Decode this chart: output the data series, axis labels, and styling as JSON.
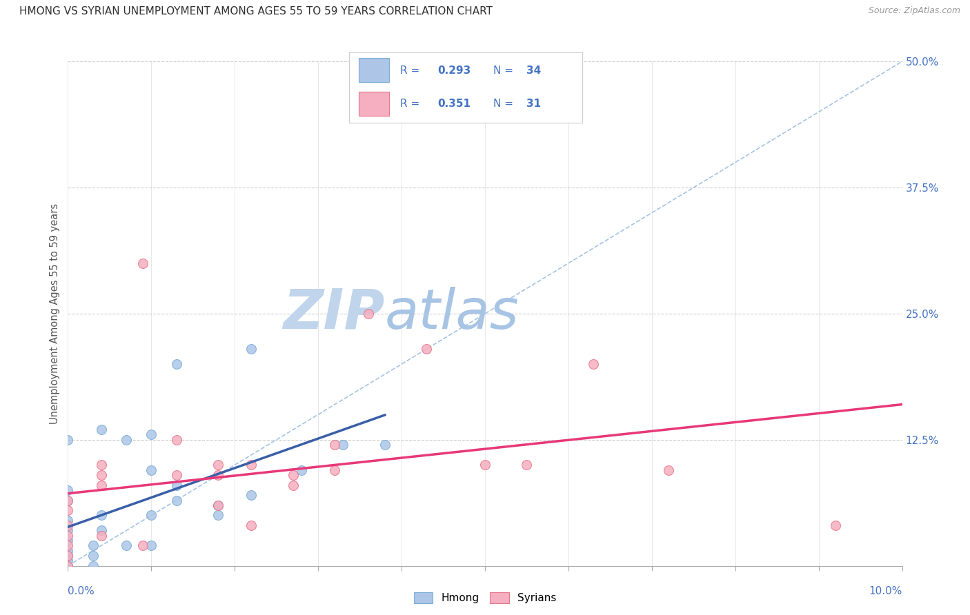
{
  "title": "HMONG VS SYRIAN UNEMPLOYMENT AMONG AGES 55 TO 59 YEARS CORRELATION CHART",
  "source": "Source: ZipAtlas.com",
  "ylabel": "Unemployment Among Ages 55 to 59 years",
  "xlim": [
    0.0,
    0.1
  ],
  "ylim": [
    0.0,
    0.5
  ],
  "yticks": [
    0.0,
    0.125,
    0.25,
    0.375,
    0.5
  ],
  "ytick_labels": [
    "",
    "12.5%",
    "25.0%",
    "37.5%",
    "50.0%"
  ],
  "xticks": [
    0.0,
    0.01,
    0.02,
    0.03,
    0.04,
    0.05,
    0.06,
    0.07,
    0.08,
    0.09,
    0.1
  ],
  "legend_hmong_R": "0.293",
  "legend_hmong_N": "34",
  "legend_syrian_R": "0.351",
  "legend_syrian_N": "31",
  "hmong_color": "#adc6e8",
  "hmong_edge_color": "#7aadd4",
  "syrian_color": "#f5afc0",
  "syrian_edge_color": "#e8758a",
  "hmong_line_color": "#3a5fa8",
  "syrian_line_color": "#e83878",
  "diagonal_color": "#9bbde0",
  "watermark_zip_color": "#c8d8ee",
  "watermark_atlas_color": "#c8d8ee",
  "background_color": "#ffffff",
  "title_color": "#303030",
  "tick_label_color": "#4472c4",
  "legend_text_color": "#4472c4",
  "hmong_x": [
    0.0,
    0.0,
    0.0,
    0.0,
    0.0,
    0.0,
    0.0,
    0.0,
    0.0,
    0.0,
    0.0,
    0.0,
    0.003,
    0.003,
    0.003,
    0.004,
    0.004,
    0.004,
    0.007,
    0.007,
    0.01,
    0.01,
    0.01,
    0.01,
    0.013,
    0.013,
    0.013,
    0.018,
    0.018,
    0.022,
    0.022,
    0.028,
    0.033,
    0.038
  ],
  "hmong_y": [
    0.0,
    0.0,
    0.0,
    0.005,
    0.01,
    0.015,
    0.025,
    0.035,
    0.045,
    0.065,
    0.075,
    0.125,
    0.0,
    0.01,
    0.02,
    0.035,
    0.05,
    0.135,
    0.02,
    0.125,
    0.02,
    0.05,
    0.095,
    0.13,
    0.065,
    0.08,
    0.2,
    0.05,
    0.06,
    0.07,
    0.215,
    0.095,
    0.12,
    0.12
  ],
  "syrian_x": [
    0.0,
    0.0,
    0.0,
    0.0,
    0.0,
    0.0,
    0.0,
    0.004,
    0.004,
    0.004,
    0.004,
    0.009,
    0.009,
    0.013,
    0.013,
    0.018,
    0.018,
    0.018,
    0.022,
    0.022,
    0.027,
    0.027,
    0.032,
    0.032,
    0.036,
    0.043,
    0.05,
    0.055,
    0.063,
    0.072,
    0.092
  ],
  "syrian_y": [
    0.0,
    0.01,
    0.02,
    0.03,
    0.04,
    0.055,
    0.065,
    0.03,
    0.08,
    0.09,
    0.1,
    0.3,
    0.02,
    0.09,
    0.125,
    0.06,
    0.09,
    0.1,
    0.04,
    0.1,
    0.08,
    0.09,
    0.095,
    0.12,
    0.25,
    0.215,
    0.1,
    0.1,
    0.2,
    0.095,
    0.04
  ],
  "marker_size": 100
}
